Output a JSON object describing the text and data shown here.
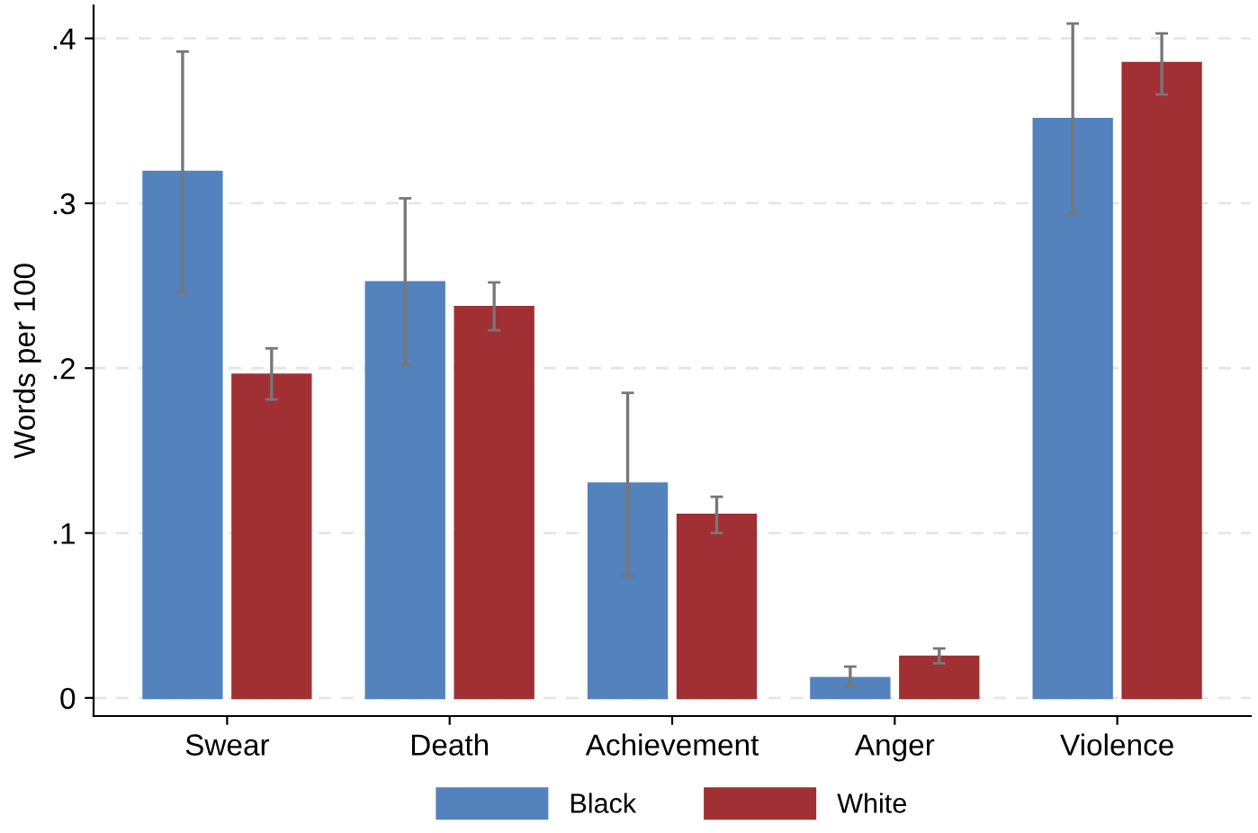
{
  "chart_data": {
    "type": "bar",
    "ylabel": "Words per 100",
    "categories": [
      "Swear",
      "Death",
      "Achievement",
      "Anger",
      "Violence"
    ],
    "series": [
      {
        "name": "Black",
        "color": "#5482bc",
        "values": [
          0.319,
          0.252,
          0.13,
          0.012,
          0.351
        ],
        "errors": [
          [
            0.246,
            0.392
          ],
          [
            0.202,
            0.303
          ],
          [
            0.074,
            0.185
          ],
          [
            0.007,
            0.019
          ],
          [
            0.294,
            0.409
          ]
        ]
      },
      {
        "name": "White",
        "color": "#a03033",
        "values": [
          0.196,
          0.237,
          0.111,
          0.025,
          0.385
        ],
        "errors": [
          [
            0.181,
            0.212
          ],
          [
            0.223,
            0.252
          ],
          [
            0.1,
            0.122
          ],
          [
            0.021,
            0.03
          ],
          [
            0.366,
            0.403
          ]
        ]
      }
    ],
    "ylim": [
      -0.011,
      0.42
    ],
    "yticks": [
      {
        "value": 0,
        "label": "0"
      },
      {
        "value": 0.1,
        "label": ".1"
      },
      {
        "value": 0.2,
        "label": ".2"
      },
      {
        "value": 0.3,
        "label": ".3"
      },
      {
        "value": 0.4,
        "label": ".4"
      }
    ],
    "grid": "y",
    "legend": "bottom"
  }
}
